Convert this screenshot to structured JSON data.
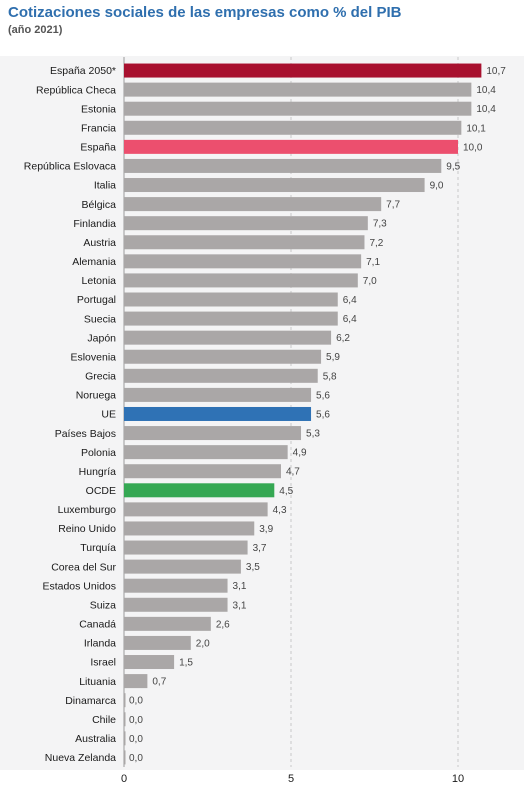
{
  "chart_data": {
    "type": "bar",
    "orientation": "horizontal",
    "title": "Cotizaciones sociales de las empresas como % del PIB",
    "subtitle": "(año 2021)",
    "xlim": [
      0,
      11
    ],
    "xticks": [
      "0",
      "5",
      "10"
    ],
    "grid": "vertical dashed at 5 and 10",
    "categories": [
      "España 2050*",
      "República Checa",
      "Estonia",
      "Francia",
      "España",
      "República Eslovaca",
      "Italia",
      "Bélgica",
      "Finlandia",
      "Austria",
      "Alemania",
      "Letonia",
      "Portugal",
      "Suecia",
      "Japón",
      "Eslovenia",
      "Grecia",
      "Noruega",
      "UE",
      "Países Bajos",
      "Polonia",
      "Hungría",
      "OCDE",
      "Luxemburgo",
      "Reino Unido",
      "Turquía",
      "Corea del Sur",
      "Estados Unidos",
      "Suiza",
      "Canadá",
      "Irlanda",
      "Israel",
      "Lituania",
      "Dinamarca",
      "Chile",
      "Australia",
      "Nueva Zelanda"
    ],
    "values": [
      10.7,
      10.4,
      10.4,
      10.1,
      10.0,
      9.5,
      9.0,
      7.7,
      7.3,
      7.2,
      7.1,
      7.0,
      6.4,
      6.4,
      6.2,
      5.9,
      5.8,
      5.6,
      5.6,
      5.3,
      4.9,
      4.7,
      4.5,
      4.3,
      3.9,
      3.7,
      3.5,
      3.1,
      3.1,
      2.6,
      2.0,
      1.5,
      0.7,
      0.0,
      0.0,
      0.0,
      0.0
    ],
    "value_labels": [
      "10,7",
      "10,4",
      "10,4",
      "10,1",
      "10,0",
      "9,5",
      "9,0",
      "7,7",
      "7,3",
      "7,2",
      "7,1",
      "7,0",
      "6,4",
      "6,4",
      "6,2",
      "5,9",
      "5,8",
      "5,6",
      "5,6",
      "5,3",
      "4,9",
      "4,7",
      "4,5",
      "4,3",
      "3,9",
      "3,7",
      "3,5",
      "3,1",
      "3,1",
      "2,6",
      "2,0",
      "1,5",
      "0,7",
      "0,0",
      "0,0",
      "0,0",
      "0,0"
    ],
    "colors": {
      "default": "#aaa7a7",
      "España 2050*": "#a8102e",
      "España": "#ec4f6e",
      "UE": "#2f72b5",
      "OCDE": "#35a853"
    }
  }
}
